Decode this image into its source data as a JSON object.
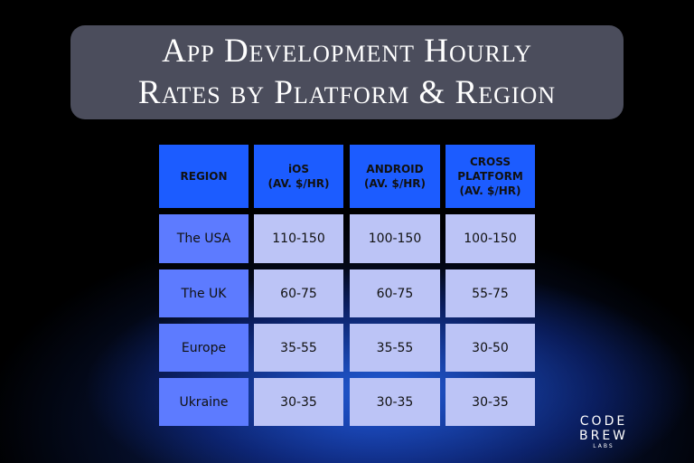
{
  "title_lines": [
    "App Development Hourly",
    "Rates by Platform & Region"
  ],
  "table": {
    "header": [
      "REGION",
      "iOS\n(AV. $/HR)",
      "ANDROID\n(AV. $/HR)",
      "CROSS\nPLATFORM\n(AV. $/HR)"
    ],
    "rows": [
      [
        "The USA",
        "110-150",
        "100-150",
        "100-150"
      ],
      [
        "The UK",
        "60-75",
        "60-75",
        "55-75"
      ],
      [
        "Europe",
        "35-55",
        "35-55",
        "30-50"
      ],
      [
        "Ukraine",
        "30-35",
        "30-35",
        "30-35"
      ]
    ]
  },
  "logo": {
    "name": "CODE BREW",
    "sub": "LABS"
  }
}
